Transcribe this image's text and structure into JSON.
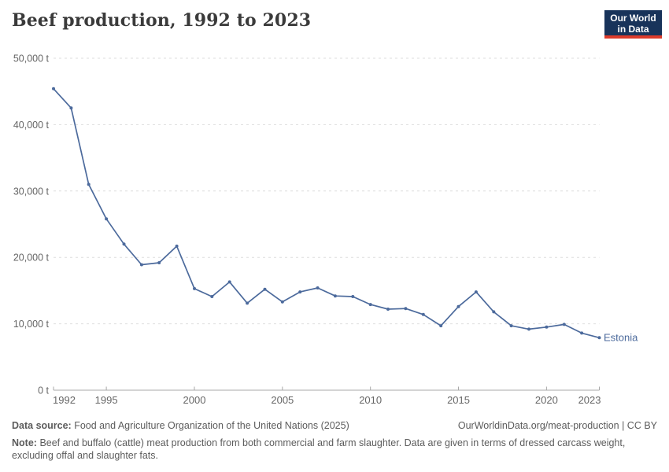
{
  "header": {
    "title": "Beef production, 1992 to 2023"
  },
  "logo": {
    "line1": "Our World",
    "line2": "in Data",
    "bg_color": "#18335a",
    "accent_color": "#dc3b2b"
  },
  "chart_data": {
    "type": "line",
    "title": "Beef production, 1992 to 2023",
    "unit": "t",
    "xlabel": "",
    "ylabel": "",
    "xlim": [
      1992,
      2023
    ],
    "ylim": [
      0,
      50000
    ],
    "grid": "horizontal-dashed",
    "legend_position": "end-of-line-label",
    "x_ticks": [
      1992,
      1995,
      2000,
      2005,
      2010,
      2015,
      2020,
      2023
    ],
    "y_ticks": [
      0,
      10000,
      20000,
      30000,
      40000,
      50000
    ],
    "y_tick_labels": [
      "0 t",
      "10,000 t",
      "20,000 t",
      "30,000 t",
      "40,000 t",
      "50,000 t"
    ],
    "series": [
      {
        "name": "Estonia",
        "color": "#4C6A9C",
        "x": [
          1992,
          1993,
          1994,
          1995,
          1996,
          1997,
          1998,
          1999,
          2000,
          2001,
          2002,
          2003,
          2004,
          2005,
          2006,
          2007,
          2008,
          2009,
          2010,
          2011,
          2012,
          2013,
          2014,
          2015,
          2016,
          2017,
          2018,
          2019,
          2020,
          2021,
          2022,
          2023
        ],
        "values": [
          45400,
          42500,
          31000,
          25800,
          22000,
          18900,
          19200,
          21700,
          15300,
          14100,
          16300,
          13100,
          15200,
          13300,
          14800,
          15400,
          14200,
          14100,
          12900,
          12200,
          12300,
          11400,
          9700,
          12600,
          14800,
          11800,
          9700,
          9200,
          9500,
          9900,
          8600,
          7900
        ]
      }
    ]
  },
  "footer": {
    "source_label": "Data source:",
    "source_text": "Food and Agriculture Organization of the United Nations (2025)",
    "link_text": "OurWorldinData.org/meat-production | CC BY",
    "note_label": "Note:",
    "note_text": "Beef and buffalo (cattle) meat production from both commercial and farm slaughter. Data are given in terms of dressed carcass weight, excluding offal and slaughter fats."
  },
  "colors": {
    "line": "#4C6A9C",
    "gridline": "#dedede",
    "axis": "#a8a8a8",
    "tick_label": "#666666",
    "title_text": "#3a3a3a",
    "footer_text": "#5c5c5c"
  }
}
